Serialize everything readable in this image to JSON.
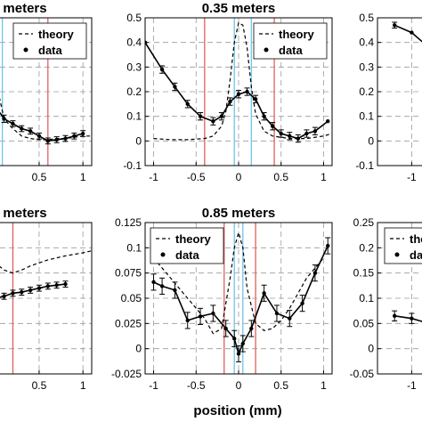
{
  "chart_data": {
    "type": "line",
    "xlabel": "position (mm)",
    "colors": {
      "data": "#000000",
      "theory": "#000000",
      "red_marker": "#e06060",
      "blue_marker": "#6ec6e6",
      "grid": "#9a9a9a"
    },
    "panels": [
      {
        "title": "meters",
        "xlim": [
          -0.15,
          1.1
        ],
        "ylim": [
          -0.1,
          0.5
        ],
        "xticks": [
          0.5,
          1
        ],
        "xticklabels": [
          "0.5",
          "1"
        ],
        "show_xticklabels": true,
        "yticks": [
          -0.1,
          0,
          0.1,
          0.2,
          0.3,
          0.4,
          0.5
        ],
        "yticklabels": [],
        "legend": {
          "visible": true,
          "placement": "top-right",
          "entries": [
            "theory",
            "data"
          ]
        },
        "vlines_red": [
          0.6
        ],
        "vlines_blue": [
          0.08
        ],
        "theory": {
          "x": [
            -0.15,
            -0.05,
            0.0,
            0.05,
            0.1,
            0.2,
            0.3,
            0.4,
            0.5,
            0.6,
            0.7,
            0.8,
            0.9,
            1.0,
            1.1
          ],
          "y": [
            0.39,
            0.34,
            0.27,
            0.17,
            0.09,
            0.05,
            0.02,
            0.01,
            0.005,
            0.005,
            0.01,
            0.01,
            0.015,
            0.02,
            0.02
          ]
        },
        "data": {
          "x": [
            -0.15,
            0.0,
            0.1,
            0.2,
            0.3,
            0.4,
            0.5,
            0.6,
            0.7,
            0.8,
            0.9,
            1.0
          ],
          "y": [
            0.16,
            0.14,
            0.09,
            0.07,
            0.05,
            0.04,
            0.02,
            0.0,
            0.005,
            0.01,
            0.02,
            0.03
          ],
          "err": [
            0.0,
            0.015,
            0.015,
            0.012,
            0.012,
            0.012,
            0.012,
            0.012,
            0.012,
            0.012,
            0.012,
            0.012
          ]
        }
      },
      {
        "title": "0.35 meters",
        "xlim": [
          -1.1,
          1.1
        ],
        "ylim": [
          -0.1,
          0.5
        ],
        "xticks": [
          -1,
          -0.5,
          0,
          0.5,
          1
        ],
        "xticklabels": [
          "-1",
          "-0.5",
          "0",
          "0.5",
          "1"
        ],
        "show_xticklabels": true,
        "yticks": [
          -0.1,
          0,
          0.1,
          0.2,
          0.3,
          0.4,
          0.5
        ],
        "yticklabels": [
          "-0.1",
          "0",
          "0.1",
          "0.2",
          "0.3",
          "0.4",
          "0.5"
        ],
        "legend": {
          "visible": true,
          "placement": "top-right",
          "entries": [
            "theory",
            "data"
          ]
        },
        "vlines_red": [
          -0.4,
          0.42
        ],
        "vlines_blue": [
          -0.05,
          0.15
        ],
        "theory": {
          "x": [
            -1.0,
            -0.8,
            -0.6,
            -0.4,
            -0.3,
            -0.2,
            -0.15,
            -0.1,
            -0.05,
            0.0,
            0.05,
            0.1,
            0.15,
            0.2,
            0.3,
            0.4,
            0.6,
            0.8,
            1.0,
            1.1
          ],
          "y": [
            0.01,
            0.005,
            0.005,
            0.01,
            0.02,
            0.06,
            0.12,
            0.25,
            0.4,
            0.48,
            0.47,
            0.38,
            0.22,
            0.11,
            0.04,
            0.02,
            0.01,
            0.01,
            0.02,
            0.03
          ]
        },
        "data": {
          "x": [
            -1.1,
            -0.9,
            -0.75,
            -0.6,
            -0.45,
            -0.3,
            -0.2,
            -0.1,
            0.0,
            0.1,
            0.2,
            0.3,
            0.4,
            0.5,
            0.6,
            0.7,
            0.8,
            0.9,
            1.05
          ],
          "y": [
            0.4,
            0.29,
            0.22,
            0.15,
            0.1,
            0.08,
            0.1,
            0.16,
            0.19,
            0.2,
            0.17,
            0.1,
            0.06,
            0.03,
            0.02,
            0.01,
            0.03,
            0.04,
            0.08
          ],
          "err": [
            0.0,
            0.015,
            0.015,
            0.015,
            0.015,
            0.015,
            0.015,
            0.015,
            0.015,
            0.015,
            0.015,
            0.015,
            0.015,
            0.015,
            0.015,
            0.015,
            0.015,
            0.015,
            0.0
          ]
        }
      },
      {
        "title": "",
        "xlim": [
          -1.1,
          -0.85
        ],
        "ylim": [
          -0.1,
          0.5
        ],
        "xticks": [
          -1
        ],
        "xticklabels": [
          "-1"
        ],
        "show_xticklabels": true,
        "yticks": [
          -0.1,
          0,
          0.1,
          0.2,
          0.3,
          0.4,
          0.5
        ],
        "yticklabels": [
          "-0.1",
          "0",
          "0.1",
          "0.2",
          "0.3",
          "0.4",
          "0.5"
        ],
        "legend": {
          "visible": false,
          "placement": "top-right",
          "entries": []
        },
        "vlines_red": [],
        "vlines_blue": [],
        "theory": {
          "x": [],
          "y": []
        },
        "data": {
          "x": [
            -1.05,
            -1.0,
            -0.95,
            -0.9,
            -0.85
          ],
          "y": [
            0.47,
            0.44,
            0.38,
            0.28,
            0.18
          ],
          "err": [
            0.012,
            0.0,
            0.0,
            0.0,
            0.0
          ]
        }
      },
      {
        "title": "meters",
        "xlim": [
          -0.15,
          1.1
        ],
        "ylim": [
          -0.025,
          0.125
        ],
        "xticks": [
          0.5,
          1
        ],
        "xticklabels": [
          "0.5",
          "1"
        ],
        "show_xticklabels": true,
        "yticks": [
          -0.025,
          0,
          0.025,
          0.05,
          0.075,
          0.1,
          0.125
        ],
        "yticklabels": [],
        "legend": {
          "visible": false,
          "placement": "top-right",
          "entries": []
        },
        "vlines_red": [
          0.2
        ],
        "vlines_blue": [
          -0.12
        ],
        "theory": {
          "x": [
            -0.15,
            -0.05,
            0.0,
            0.1,
            0.2,
            0.3,
            0.4,
            0.6,
            0.8,
            1.0,
            1.1
          ],
          "y": [
            0.1,
            0.09,
            0.085,
            0.078,
            0.075,
            0.078,
            0.082,
            0.088,
            0.092,
            0.095,
            0.097
          ]
        },
        "data": {
          "x": [
            -0.15,
            0.0,
            0.1,
            0.2,
            0.3,
            0.4,
            0.5,
            0.6,
            0.7,
            0.8
          ],
          "y": [
            0.052,
            0.05,
            0.052,
            0.055,
            0.056,
            0.058,
            0.06,
            0.062,
            0.063,
            0.064
          ],
          "err": [
            0.0,
            0.003,
            0.003,
            0.003,
            0.003,
            0.003,
            0.003,
            0.003,
            0.003,
            0.003
          ]
        }
      },
      {
        "title": "0.85 meters",
        "xlim": [
          -1.1,
          1.1
        ],
        "ylim": [
          -0.025,
          0.125
        ],
        "xticks": [
          -1,
          -0.5,
          0,
          0.5,
          1
        ],
        "xticklabels": [
          "-1",
          "-0.5",
          "0",
          "0.5",
          "1"
        ],
        "show_xticklabels": true,
        "yticks": [
          -0.025,
          0,
          0.025,
          0.05,
          0.075,
          0.1,
          0.125
        ],
        "yticklabels": [
          "-0.025",
          "0",
          "0.025",
          "0.05",
          "0.075",
          "0.1",
          "0.125"
        ],
        "legend": {
          "visible": true,
          "placement": "top-left",
          "entries": [
            "theory",
            "data"
          ]
        },
        "vlines_red": [
          -0.17,
          0.2
        ],
        "vlines_blue": [
          -0.05,
          0.05
        ],
        "theory": {
          "x": [
            -1.0,
            -0.8,
            -0.6,
            -0.5,
            -0.4,
            -0.3,
            -0.2,
            -0.1,
            -0.05,
            0.0,
            0.05,
            0.1,
            0.2,
            0.3,
            0.4,
            0.5,
            0.6,
            0.8,
            1.0
          ],
          "y": [
            0.09,
            0.07,
            0.05,
            0.04,
            0.03,
            0.015,
            0.02,
            0.07,
            0.1,
            0.115,
            0.1,
            0.06,
            0.025,
            0.018,
            0.02,
            0.028,
            0.04,
            0.07,
            0.09
          ]
        },
        "data": {
          "x": [
            -1.0,
            -0.9,
            -0.75,
            -0.6,
            -0.45,
            -0.3,
            -0.15,
            -0.05,
            0.0,
            0.05,
            0.15,
            0.3,
            0.45,
            0.6,
            0.75,
            0.9,
            1.05
          ],
          "y": [
            0.066,
            0.062,
            0.058,
            0.028,
            0.032,
            0.035,
            0.02,
            0.01,
            -0.005,
            0.005,
            0.02,
            0.055,
            0.035,
            0.03,
            0.045,
            0.075,
            0.102
          ],
          "err": [
            0.008,
            0.008,
            0.008,
            0.008,
            0.008,
            0.008,
            0.008,
            0.008,
            0.008,
            0.008,
            0.008,
            0.008,
            0.008,
            0.008,
            0.008,
            0.008,
            0.008
          ]
        }
      },
      {
        "title": "",
        "xlim": [
          -1.1,
          -0.85
        ],
        "ylim": [
          -0.05,
          0.25
        ],
        "xticks": [
          -1
        ],
        "xticklabels": [
          "-1"
        ],
        "show_xticklabels": true,
        "yticks": [
          -0.05,
          0,
          0.05,
          0.1,
          0.15,
          0.2,
          0.25
        ],
        "yticklabels": [
          "-0.05",
          "0",
          "0.05",
          "0.1",
          "0.15",
          "0.2",
          "0.25"
        ],
        "legend": {
          "visible": true,
          "placement": "top-right",
          "entries": [
            "theory",
            "data"
          ]
        },
        "vlines_red": [],
        "vlines_blue": [],
        "theory": {
          "x": [],
          "y": []
        },
        "data": {
          "x": [
            -1.05,
            -1.0,
            -0.95,
            -0.9,
            -0.85
          ],
          "y": [
            0.065,
            0.06,
            0.05,
            0.04,
            0.03
          ],
          "err": [
            0.01,
            0.01,
            0.0,
            0.0,
            0.0
          ]
        }
      }
    ]
  }
}
